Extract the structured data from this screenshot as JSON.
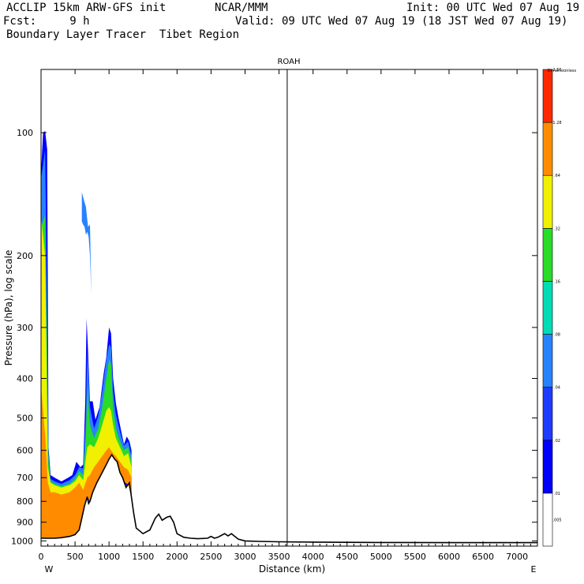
{
  "header": {
    "model": "ACCLIP 15km ARW-GFS init",
    "org": "NCAR/MMM",
    "init": "Init: 00 UTC Wed 07 Aug 19",
    "forecast": "Fcst:     9 h",
    "valid": "Valid: 09 UTC Wed 07 Aug 19 (18 JST Wed 07 Aug 19)",
    "product": "Boundary Layer Tracer  Tibet Region"
  },
  "chart_data": {
    "type": "heatmap",
    "title": "ROAH",
    "xlabel": "Distance (km)",
    "ylabel": "Pressure (hPa), log scale",
    "x_start_label": "W",
    "x_end_label": "E",
    "xlim": [
      0,
      7300
    ],
    "ylim": [
      1030,
      70
    ],
    "y_scale": "log",
    "xticks": [
      0,
      500,
      1000,
      1500,
      2000,
      2500,
      3000,
      3500,
      4000,
      4500,
      5000,
      5500,
      6000,
      6500,
      7000
    ],
    "yticks": [
      100,
      200,
      300,
      400,
      500,
      600,
      700,
      800,
      900,
      1000
    ],
    "vertical_line_km": 3620,
    "colorbar": {
      "title": "Dimensionless",
      "levels": [
        ".005",
        ".01",
        ".02",
        ".04",
        ".08",
        ".16",
        ".32",
        ".64",
        "1.28",
        "2.56"
      ],
      "colors": [
        "#ffffff",
        "#0000ff",
        "#1e3cff",
        "#2882ff",
        "#00dcb4",
        "#28dc28",
        "#f0f000",
        "#ff8c00",
        "#ff2800"
      ]
    },
    "terrain_surface": {
      "x_km": [
        0,
        120,
        200,
        300,
        420,
        500,
        560,
        600,
        640,
        680,
        700,
        720,
        760,
        820,
        880,
        940,
        1000,
        1040,
        1080,
        1120,
        1160,
        1200,
        1250,
        1300,
        1320,
        1360,
        1400,
        1500,
        1600,
        1680,
        1730,
        1780,
        1850,
        1900,
        1950,
        2000,
        2100,
        2200,
        2300,
        2450,
        2500,
        2550,
        2600,
        2650,
        2700,
        2750,
        2800,
        2850,
        2900,
        3000,
        3200,
        3500,
        4000,
        4500,
        5000,
        6000,
        7300
      ],
      "p_hpa": [
        985,
        985,
        985,
        982,
        975,
        965,
        940,
        880,
        820,
        780,
        810,
        800,
        760,
        720,
        690,
        660,
        630,
        615,
        630,
        640,
        680,
        700,
        740,
        720,
        760,
        850,
        930,
        960,
        940,
        880,
        860,
        890,
        875,
        870,
        900,
        960,
        980,
        985,
        988,
        985,
        975,
        985,
        980,
        970,
        960,
        972,
        960,
        975,
        990,
        1000,
        1003,
        1005,
        1007,
        1008,
        1009,
        1010,
        1010
      ]
    },
    "tracer_plumes": [
      {
        "level": ".01",
        "color": "#0000ff",
        "x_km": [
          0,
          30,
          60,
          90,
          110,
          140,
          200,
          300,
          400,
          460,
          520,
          580,
          620,
          650,
          670,
          690,
          720,
          760,
          800,
          860,
          920,
          960,
          1000,
          1030,
          1060,
          1100,
          1140,
          1180,
          1220,
          1260,
          1300,
          1330
        ],
        "p_top_hpa": [
          125,
          100,
          99,
          110,
          590,
          690,
          700,
          715,
          700,
          690,
          640,
          660,
          650,
          460,
          285,
          340,
          455,
          455,
          505,
          470,
          390,
          355,
          300,
          310,
          400,
          460,
          500,
          540,
          580,
          555,
          570,
          600
        ]
      },
      {
        "level": ".04",
        "color": "#2882ff",
        "x_km": [
          0,
          60,
          110,
          140,
          200,
          300,
          420,
          500,
          560,
          620,
          660,
          680,
          720,
          780,
          840,
          900,
          960,
          1000,
          1030,
          1060,
          1100,
          1160,
          1220,
          1280,
          1330
        ],
        "p_top_hpa": [
          130,
          110,
          610,
          705,
          715,
          725,
          710,
          690,
          660,
          665,
          490,
          340,
          470,
          530,
          495,
          430,
          360,
          330,
          335,
          430,
          490,
          540,
          585,
          570,
          620
        ]
      },
      {
        "level": ".16",
        "color": "#28dc28",
        "x_km": [
          0,
          60,
          110,
          140,
          200,
          300,
          420,
          500,
          560,
          620,
          660,
          680,
          720,
          780,
          840,
          900,
          960,
          1000,
          1030,
          1060,
          1100,
          1160,
          1220,
          1280,
          1330
        ],
        "p_top_hpa": [
          170,
          160,
          640,
          715,
          725,
          735,
          725,
          705,
          675,
          690,
          560,
          420,
          520,
          560,
          530,
          470,
          400,
          360,
          370,
          470,
          530,
          570,
          600,
          590,
          640
        ]
      },
      {
        "level": ".32",
        "color": "#f0f000",
        "x_km": [
          0,
          60,
          100,
          140,
          200,
          300,
          420,
          500,
          560,
          620,
          680,
          720,
          780,
          840,
          900,
          960,
          1000,
          1030,
          1060,
          1100,
          1160,
          1220,
          1280,
          1330
        ],
        "p_top_hpa": [
          160,
          200,
          660,
          720,
          730,
          740,
          730,
          715,
          690,
          710,
          590,
          580,
          590,
          560,
          520,
          480,
          470,
          480,
          520,
          560,
          590,
          620,
          610,
          660
        ]
      },
      {
        "level": ".64",
        "color": "#ff8c00",
        "x_km": [
          0,
          60,
          100,
          140,
          200,
          300,
          420,
          500,
          560,
          620,
          680,
          720,
          780,
          840,
          900,
          960,
          1000,
          1030,
          1060,
          1100,
          1160,
          1220,
          1280,
          1330
        ],
        "p_top_hpa": [
          420,
          550,
          720,
          760,
          760,
          770,
          760,
          740,
          720,
          750,
          700,
          690,
          660,
          640,
          620,
          600,
          590,
          600,
          610,
          620,
          640,
          660,
          670,
          700
        ]
      },
      {
        "level": ".04",
        "color": "#2882ff",
        "x_km": [
          600,
          640,
          660,
          690,
          720,
          740,
          720,
          700,
          680,
          660,
          640,
          620,
          600
        ],
        "p_top_hpa": [
          140,
          148,
          152,
          170,
          168,
          250,
          200,
          180,
          175,
          178,
          170,
          168,
          165
        ]
      }
    ]
  }
}
